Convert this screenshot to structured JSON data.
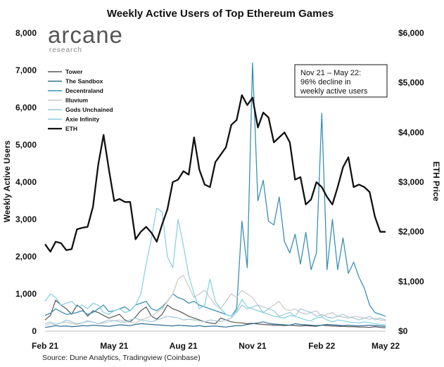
{
  "chart_data": {
    "type": "line",
    "title": "Weekly Active Users of Top Ethereum Games",
    "ylabel": "Weekly Active Users",
    "y2label": "ETH Price",
    "ylim": [
      0,
      8000
    ],
    "y2lim": [
      0,
      6000
    ],
    "yticks": [
      "0",
      "1,000",
      "2,000",
      "3,000",
      "4,000",
      "5,000",
      "6,000",
      "7,000",
      "8,000"
    ],
    "y2ticks": [
      "$0",
      "$1,000",
      "$2,000",
      "$3,000",
      "$4,000",
      "$5,000",
      "$6,000"
    ],
    "xticks": [
      {
        "label": "Feb 21",
        "week": 0
      },
      {
        "label": "May 21",
        "week": 13
      },
      {
        "label": "Aug 21",
        "week": 26
      },
      {
        "label": "Nov 21",
        "week": 39
      },
      {
        "label": "Feb 22",
        "week": 52
      },
      {
        "label": "May 22",
        "week": 64
      }
    ],
    "x": [
      0,
      1,
      2,
      3,
      4,
      5,
      6,
      7,
      8,
      9,
      10,
      11,
      12,
      13,
      14,
      15,
      16,
      17,
      18,
      19,
      20,
      21,
      22,
      23,
      24,
      25,
      26,
      27,
      28,
      29,
      30,
      31,
      32,
      33,
      34,
      35,
      36,
      37,
      38,
      39,
      40,
      41,
      42,
      43,
      44,
      45,
      46,
      47,
      48,
      49,
      50,
      51,
      52,
      53,
      54,
      55,
      56,
      57,
      58,
      59,
      60,
      61,
      62,
      63,
      64
    ],
    "legend_position": "upper-left",
    "series": [
      {
        "name": "Tower",
        "color": "#555555",
        "axis": "left",
        "width": 1.2,
        "values": [
          300,
          420,
          830,
          700,
          600,
          450,
          700,
          600,
          400,
          550,
          500,
          420,
          350,
          400,
          450,
          300,
          250,
          380,
          550,
          650,
          400,
          320,
          450,
          700,
          600,
          550,
          480,
          400,
          350,
          300,
          250,
          220,
          200,
          350,
          300,
          250,
          230,
          220,
          200,
          210,
          190,
          180,
          170,
          160,
          160,
          150,
          160,
          150,
          140,
          150,
          140,
          130,
          160,
          150,
          140,
          130,
          130,
          120,
          120,
          110,
          110,
          100,
          120,
          100,
          90
        ]
      },
      {
        "name": "The Sandbox",
        "color": "#2f6e96",
        "axis": "left",
        "width": 1.2,
        "values": [
          100,
          120,
          150,
          130,
          140,
          120,
          130,
          150,
          140,
          160,
          150,
          140,
          130,
          150,
          170,
          160,
          150,
          180,
          200,
          190,
          180,
          170,
          160,
          150,
          140,
          160,
          150,
          140,
          130,
          150,
          120,
          130,
          140,
          120,
          110,
          130,
          150,
          150,
          180,
          200,
          220,
          250,
          210,
          190,
          180,
          170,
          160,
          200,
          180,
          170,
          160,
          150,
          160,
          180,
          170,
          160,
          150,
          160,
          150,
          140,
          150,
          160,
          150,
          140,
          130
        ]
      },
      {
        "name": "Decentraland",
        "color": "#3a8fb5",
        "axis": "left",
        "width": 1.3,
        "values": [
          420,
          480,
          600,
          520,
          450,
          470,
          500,
          550,
          450,
          500,
          600,
          700,
          520,
          550,
          600,
          650,
          550,
          700,
          750,
          800,
          600,
          550,
          650,
          800,
          1000,
          900,
          850,
          750,
          800,
          700,
          650,
          600,
          550,
          500,
          450,
          400,
          600,
          2950,
          1700,
          7200,
          3500,
          4050,
          2950,
          2850,
          3600,
          2400,
          2100,
          2600,
          1800,
          2650,
          1650,
          2100,
          5850,
          1650,
          3000,
          1650,
          2500,
          1550,
          1850,
          1450,
          1150,
          700,
          500,
          450,
          400
        ]
      },
      {
        "name": "Illuvium",
        "color": "#c8c8c8",
        "axis": "left",
        "width": 1.2,
        "values": [
          150,
          200,
          180,
          220,
          250,
          200,
          180,
          220,
          260,
          240,
          200,
          220,
          250,
          280,
          300,
          260,
          240,
          220,
          300,
          350,
          400,
          500,
          600,
          800,
          1000,
          1400,
          1500,
          1200,
          900,
          1000,
          1100,
          900,
          700,
          600,
          800,
          1000,
          900,
          1100,
          1000,
          900,
          700,
          650,
          600,
          700,
          800,
          600,
          550,
          600,
          500,
          450,
          500,
          550,
          400,
          450,
          500,
          400,
          380,
          350,
          400,
          380,
          350,
          320,
          350,
          300,
          280
        ]
      },
      {
        "name": "Gods Unchained",
        "color": "#9fc7dc",
        "axis": "left",
        "width": 1.2,
        "values": [
          200,
          250,
          180,
          220,
          300,
          250,
          200,
          220,
          280,
          240,
          200,
          250,
          300,
          280,
          250,
          230,
          300,
          350,
          300,
          280,
          250,
          300,
          350,
          400,
          380,
          350,
          300,
          320,
          300,
          280,
          250,
          300,
          280,
          260,
          300,
          350,
          500,
          700,
          600,
          650,
          700,
          500,
          600,
          550,
          400,
          450,
          500,
          400,
          600,
          550,
          500,
          400,
          450,
          380,
          350,
          400,
          450,
          380,
          350,
          300,
          350,
          400,
          300,
          350,
          300
        ]
      },
      {
        "name": "Axie Infinity",
        "color": "#7fd0e0",
        "axis": "left",
        "width": 1.2,
        "values": [
          800,
          1000,
          900,
          700,
          750,
          800,
          650,
          700,
          600,
          750,
          700,
          500,
          450,
          550,
          600,
          500,
          550,
          700,
          1000,
          1800,
          2500,
          3300,
          3200,
          2000,
          1700,
          3000,
          2300,
          1500,
          1000,
          600,
          700,
          1400,
          800,
          600,
          450,
          400,
          550,
          850,
          650,
          600,
          550,
          500,
          450,
          400,
          380,
          350,
          420,
          400,
          350,
          300,
          280,
          350,
          380,
          300,
          250,
          300,
          280,
          250,
          230,
          220,
          250,
          230,
          200,
          180,
          170
        ]
      },
      {
        "name": "ETH",
        "color": "#111111",
        "axis": "right",
        "width": 2.3,
        "values": [
          1750,
          1600,
          1800,
          1770,
          1630,
          1650,
          2050,
          2080,
          2100,
          2500,
          3350,
          3950,
          3250,
          2620,
          2660,
          2600,
          2600,
          1850,
          2000,
          2100,
          1980,
          1800,
          2150,
          2450,
          3000,
          3050,
          3220,
          3150,
          3900,
          3250,
          2950,
          2900,
          3400,
          3550,
          3700,
          4150,
          4250,
          4750,
          4550,
          4700,
          4100,
          4400,
          4300,
          3800,
          3900,
          4000,
          3800,
          3050,
          3100,
          2550,
          2650,
          3000,
          2900,
          2700,
          2550,
          2900,
          3300,
          3500,
          2900,
          2950,
          2900,
          2800,
          2300,
          2000,
          2000
        ]
      }
    ],
    "annotation": [
      "Nov 21 – May 22:",
      "96% decline in",
      "weekly active users"
    ]
  },
  "logo": {
    "name": "arcane",
    "sub": "research"
  },
  "source": "Source: Dune Analytics, Tradingview (Coinbase)"
}
